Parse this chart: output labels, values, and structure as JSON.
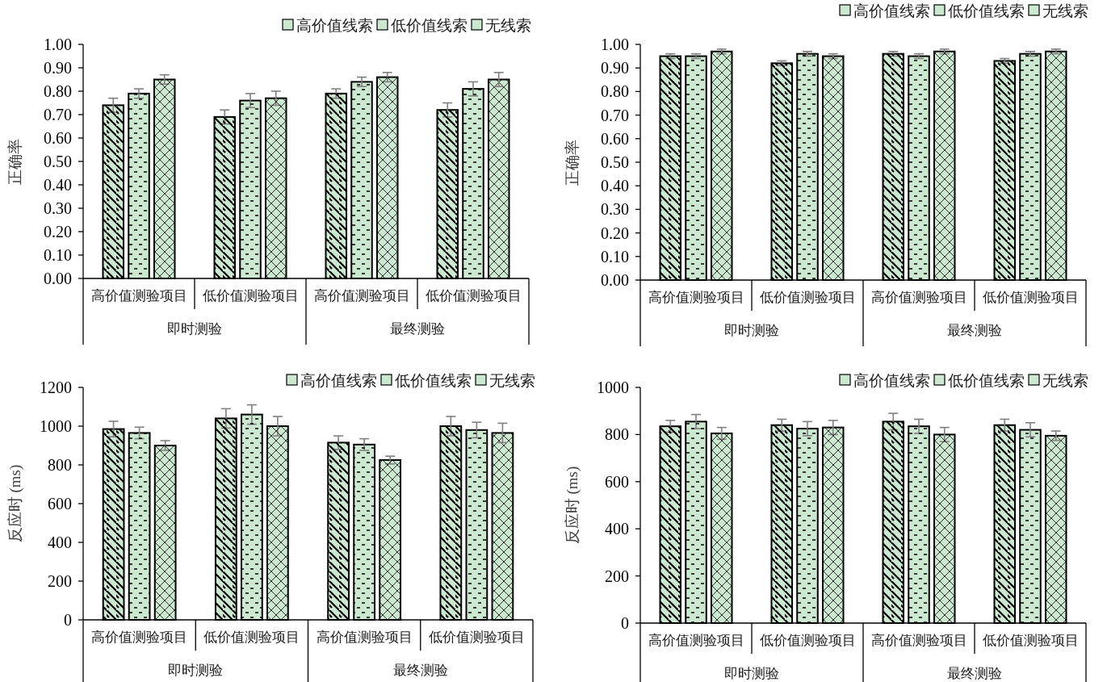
{
  "chart_data": [
    {
      "type": "bar",
      "ylabel": "正确率",
      "categories": [
        "高价值测验项目",
        "低价值测验项目",
        "高价值测验项目",
        "低价值测验项目"
      ],
      "annotations": [
        "即时测验",
        "最终测验"
      ],
      "legend": "top right",
      "ylim": [
        0,
        1
      ],
      "yticks": [
        {
          "value": 0,
          "label": "0.00"
        },
        {
          "value": 0.1,
          "label": "0.10"
        },
        {
          "value": 0.2,
          "label": "0.20"
        },
        {
          "value": 0.3,
          "label": "0.30"
        },
        {
          "value": 0.4,
          "label": "0.40"
        },
        {
          "value": 0.5,
          "label": "0.50"
        },
        {
          "value": 0.6,
          "label": "0.60"
        },
        {
          "value": 0.7,
          "label": "0.70"
        },
        {
          "value": 0.8,
          "label": "0.80"
        },
        {
          "value": 0.9,
          "label": "0.90"
        },
        {
          "value": 1,
          "label": "1.00"
        }
      ],
      "series": [
        {
          "name": "高价值线索",
          "color": "#cde8d0",
          "values": [
            0.74,
            0.69,
            0.79,
            0.72
          ],
          "errors": [
            0.03,
            0.03,
            0.02,
            0.03
          ]
        },
        {
          "name": "低价值线索",
          "color": "#cde8d0",
          "values": [
            0.79,
            0.76,
            0.84,
            0.81
          ],
          "errors": [
            0.02,
            0.03,
            0.02,
            0.03
          ]
        },
        {
          "name": "无线索",
          "color": "#cde8d0",
          "values": [
            0.85,
            0.77,
            0.86,
            0.85
          ],
          "errors": [
            0.02,
            0.03,
            0.02,
            0.03
          ]
        }
      ]
    },
    {
      "type": "bar",
      "ylabel": "正确率",
      "categories": [
        "高价值测验项目",
        "低价值测验项目",
        "高价值测验项目",
        "低价值测验项目"
      ],
      "annotations": [
        "即时测验",
        "最终测验"
      ],
      "legend": "top right",
      "ylim": [
        0,
        1
      ],
      "yticks": [
        {
          "value": 0,
          "label": "0.00"
        },
        {
          "value": 0.1,
          "label": "0.10"
        },
        {
          "value": 0.2,
          "label": "0.20"
        },
        {
          "value": 0.3,
          "label": "0.30"
        },
        {
          "value": 0.4,
          "label": "0.40"
        },
        {
          "value": 0.5,
          "label": "0.50"
        },
        {
          "value": 0.6,
          "label": "0.60"
        },
        {
          "value": 0.7,
          "label": "0.70"
        },
        {
          "value": 0.8,
          "label": "0.80"
        },
        {
          "value": 0.9,
          "label": "0.90"
        },
        {
          "value": 1,
          "label": "1.00"
        }
      ],
      "series": [
        {
          "name": "高价值线索",
          "color": "#cde8d0",
          "values": [
            0.95,
            0.92,
            0.96,
            0.93
          ],
          "errors": [
            0.01,
            0.01,
            0.01,
            0.01
          ]
        },
        {
          "name": "低价值线索",
          "color": "#cde8d0",
          "values": [
            0.95,
            0.96,
            0.95,
            0.96
          ],
          "errors": [
            0.01,
            0.01,
            0.01,
            0.01
          ]
        },
        {
          "name": "无线索",
          "color": "#cde8d0",
          "values": [
            0.97,
            0.95,
            0.97,
            0.97
          ],
          "errors": [
            0.01,
            0.01,
            0.01,
            0.01
          ]
        }
      ]
    },
    {
      "type": "bar",
      "ylabel": "反应时 (ms)",
      "categories": [
        "高价值测验项目",
        "低价值测验项目",
        "高价值测验项目",
        "低价值测验项目"
      ],
      "annotations": [
        "即时测验",
        "最终测验"
      ],
      "legend": "top right",
      "ylim": [
        0,
        1200
      ],
      "yticks": [
        0,
        200,
        400,
        600,
        800,
        1000,
        1200
      ],
      "series": [
        {
          "name": "高价值线索",
          "color": "#cde8d0",
          "values": [
            985,
            1040,
            915,
            1000
          ],
          "errors": [
            40,
            50,
            35,
            50
          ]
        },
        {
          "name": "低价值线索",
          "color": "#cde8d0",
          "values": [
            965,
            1060,
            905,
            980
          ],
          "errors": [
            30,
            50,
            30,
            40
          ]
        },
        {
          "name": "无线索",
          "color": "#cde8d0",
          "values": [
            900,
            1000,
            825,
            965
          ],
          "errors": [
            25,
            50,
            20,
            50
          ]
        }
      ]
    },
    {
      "type": "bar",
      "ylabel": "反应时 (ms)",
      "categories": [
        "高价值测验项目",
        "低价值测验项目",
        "高价值测验项目",
        "低价值测验项目"
      ],
      "annotations": [
        "即时测验",
        "最终测验"
      ],
      "legend": "top right",
      "ylim": [
        0,
        1000
      ],
      "yticks": [
        0,
        200,
        400,
        600,
        800,
        1000
      ],
      "series": [
        {
          "name": "高价值线索",
          "color": "#cde8d0",
          "values": [
            835,
            840,
            855,
            840
          ],
          "errors": [
            25,
            25,
            35,
            25
          ]
        },
        {
          "name": "低价值线索",
          "color": "#cde8d0",
          "values": [
            855,
            825,
            835,
            820
          ],
          "errors": [
            30,
            30,
            30,
            30
          ]
        },
        {
          "name": "无线索",
          "color": "#cde8d0",
          "values": [
            805,
            830,
            800,
            795
          ],
          "errors": [
            25,
            30,
            30,
            20
          ]
        }
      ]
    }
  ]
}
